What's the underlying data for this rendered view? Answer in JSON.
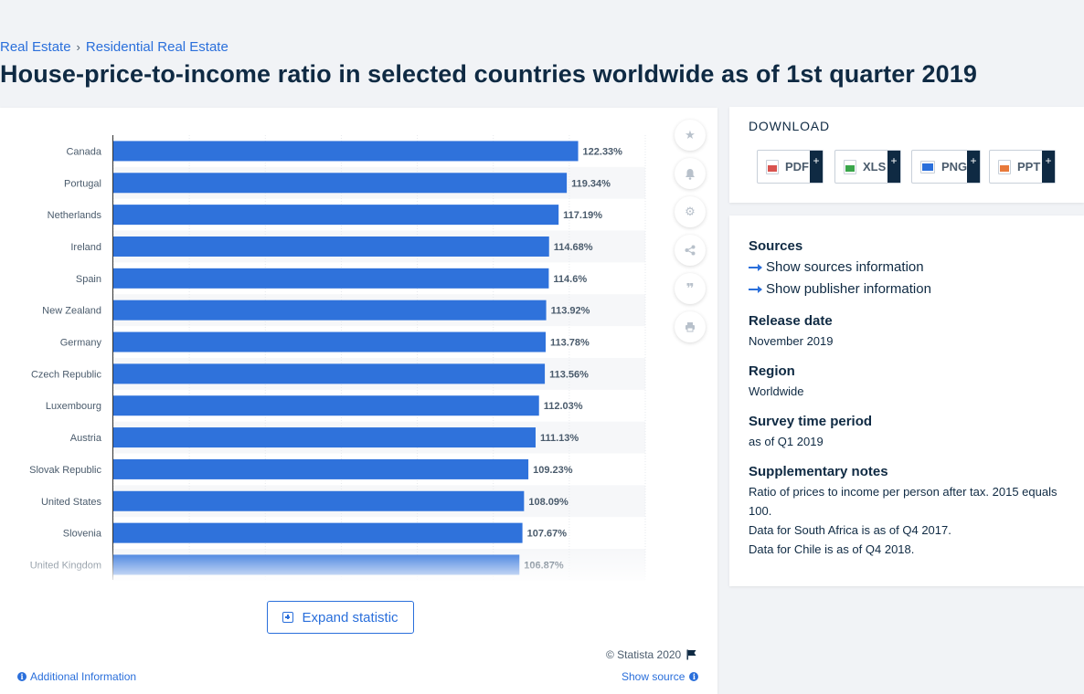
{
  "breadcrumb": {
    "item1": "Real Estate",
    "item2": "Residential Real Estate"
  },
  "page_title": "House-price-to-income ratio in selected countries worldwide as of 1st quarter 2019",
  "chart_tools": {
    "icons": [
      "star-icon",
      "bell-icon",
      "gear-icon",
      "share-icon",
      "quote-icon",
      "print-icon"
    ]
  },
  "expand_label": "Expand statistic",
  "copyright": "© Statista 2020",
  "additional_info": "Additional Information",
  "show_source": "Show source",
  "download": {
    "title": "DOWNLOAD",
    "buttons": [
      {
        "label": "PDF",
        "color": "#d9534f"
      },
      {
        "label": "XLS",
        "color": "#3aa64b"
      },
      {
        "label": "PNG",
        "color": "#2a6fdb"
      },
      {
        "label": "PPT",
        "color": "#e8793a"
      }
    ]
  },
  "sources": {
    "title": "Sources",
    "show_sources": "Show sources information",
    "show_publisher": "Show publisher information",
    "release_label": "Release date",
    "release_value": "November 2019",
    "region_label": "Region",
    "region_value": "Worldwide",
    "survey_label": "Survey time period",
    "survey_value": "as of Q1 2019",
    "notes_label": "Supplementary notes",
    "notes": [
      "Ratio of prices to income per person after tax. 2015 equals 100.",
      "Data for South Africa is as of Q4 2017.",
      "Data for Chile is as of Q4 2018."
    ]
  },
  "chart_data": {
    "type": "bar",
    "orientation": "horizontal",
    "bar_color": "#2f72db",
    "categories": [
      "Canada",
      "Portugal",
      "Netherlands",
      "Ireland",
      "Spain",
      "New Zealand",
      "Germany",
      "Czech Republic",
      "Luxembourg",
      "Austria",
      "Slovak Republic",
      "United States",
      "Slovenia",
      "United Kingdom"
    ],
    "values": [
      122.33,
      119.34,
      117.19,
      114.68,
      114.6,
      113.92,
      113.78,
      113.56,
      112.03,
      111.13,
      109.23,
      108.09,
      107.67,
      106.87
    ],
    "labels": [
      "122.33%",
      "119.34%",
      "117.19%",
      "114.68%",
      "114.6%",
      "113.92%",
      "113.78%",
      "113.56%",
      "112.03%",
      "111.13%",
      "109.23%",
      "108.09%",
      "107.67%",
      "106.87%"
    ],
    "xlim": [
      0,
      140
    ],
    "grid": true,
    "title": "",
    "xlabel": "",
    "ylabel": ""
  }
}
